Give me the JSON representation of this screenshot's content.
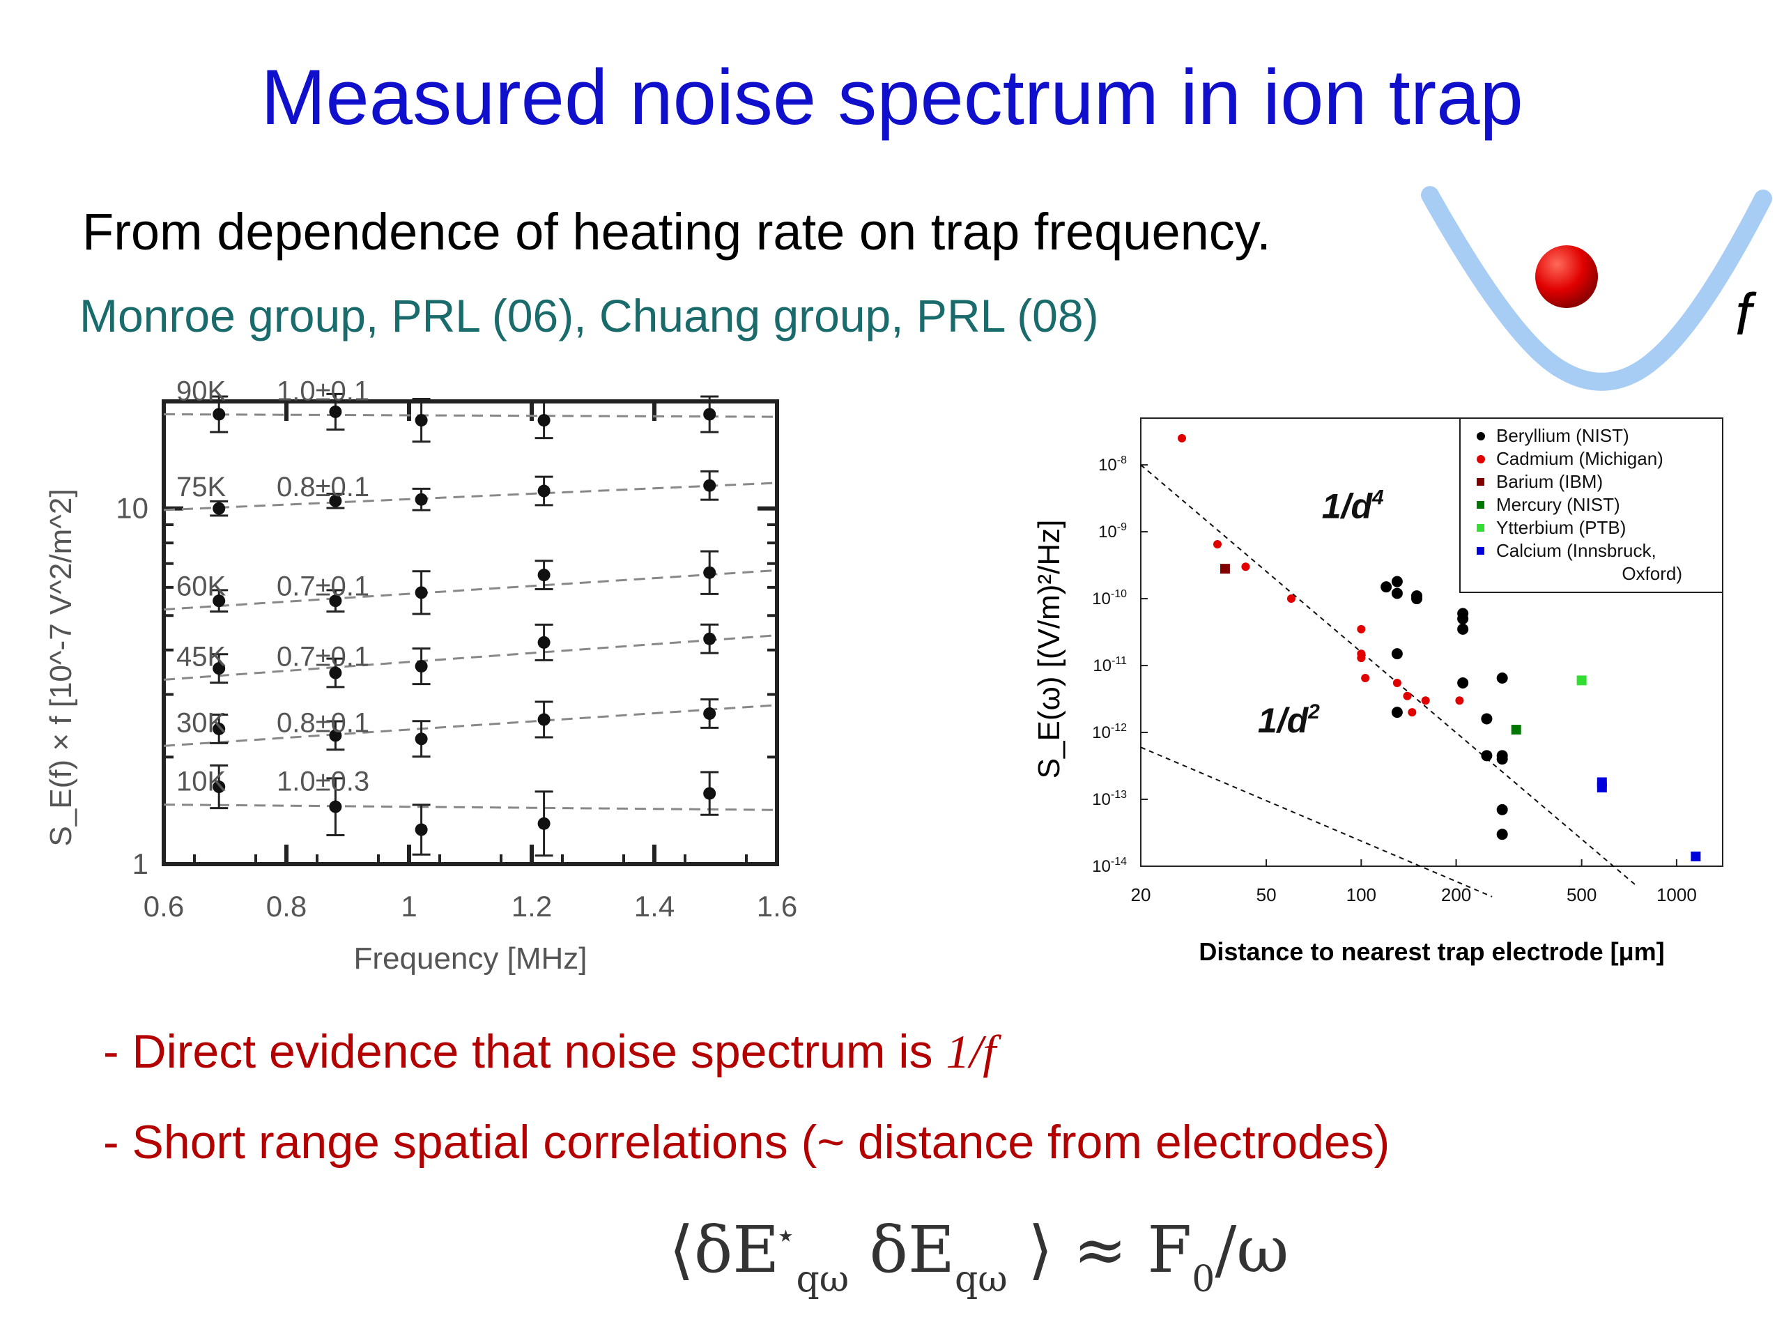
{
  "slide": {
    "title": "Measured noise spectrum in ion trap",
    "subtitle": "From dependence of heating rate on trap frequency.",
    "credits": "Monroe group, PRL  (06), Chuang group, PRL (08)",
    "well_label": "f",
    "bullet1_prefix": "- Direct evidence that noise spectrum is ",
    "bullet1_emph": "1/f",
    "bullet2": "- Short range spatial correlations (~ distance from electrodes)",
    "formula": {
      "open": "⟨δE",
      "sup1": "⋆",
      "sub1": "qω",
      "mid": "δE",
      "sub2": "qω",
      "close": "⟩ ≈ F",
      "sub3": "0",
      "tail": "/ω"
    }
  },
  "colors": {
    "title": "#1010cc",
    "credits": "#1a6b6b",
    "bullets": "#b30000",
    "well": "#a8cdf5",
    "ion": "#e00000"
  },
  "chart_data": [
    {
      "type": "scatter",
      "xlabel": "Frequency [MHz]",
      "ylabel": "S_E(f) × f [10^-7 V^2/m^2]",
      "xlim": [
        0.6,
        1.6
      ],
      "ylim": [
        1,
        20
      ],
      "yscale": "log",
      "xticks": [
        0.6,
        0.8,
        1,
        1.2,
        1.4,
        1.6
      ],
      "xtick_labels": [
        "0.6",
        "0.8",
        "1",
        "1.2",
        "1.4",
        "1.6"
      ],
      "yticks": [
        1,
        10
      ],
      "ytick_labels": [
        "1",
        "10"
      ],
      "grid": false,
      "series": [
        {
          "name": "90K",
          "slope": "1.0±0.1",
          "x": [
            0.69,
            0.88,
            1.02,
            1.22,
            1.49
          ],
          "y": [
            18.4,
            18.7,
            17.7,
            17.7,
            18.4
          ],
          "err": [
            0.05,
            0.05,
            0.06,
            0.05,
            0.05
          ],
          "fit": [
            18.4,
            18.1
          ]
        },
        {
          "name": "75K",
          "slope": "0.8±0.1",
          "x": [
            0.69,
            0.88,
            1.02,
            1.22,
            1.49
          ],
          "y": [
            10.0,
            10.5,
            10.6,
            11.2,
            11.6
          ],
          "err": [
            0.02,
            0.02,
            0.03,
            0.04,
            0.04
          ],
          "fit": [
            9.9,
            11.8
          ]
        },
        {
          "name": "60K",
          "slope": "0.7±0.1",
          "x": [
            0.69,
            0.88,
            1.02,
            1.22,
            1.49
          ],
          "y": [
            5.5,
            5.5,
            5.8,
            6.5,
            6.6
          ],
          "err": [
            0.03,
            0.03,
            0.06,
            0.04,
            0.06
          ],
          "fit": [
            5.2,
            6.7
          ]
        },
        {
          "name": "45K",
          "slope": "0.7±0.1",
          "x": [
            0.69,
            0.88,
            1.02,
            1.22,
            1.49
          ],
          "y": [
            3.55,
            3.45,
            3.6,
            4.2,
            4.3
          ],
          "err": [
            0.04,
            0.04,
            0.05,
            0.05,
            0.04
          ],
          "fit": [
            3.3,
            4.4
          ]
        },
        {
          "name": "30K",
          "slope": "0.8±0.1",
          "x": [
            0.69,
            0.88,
            1.02,
            1.22,
            1.49
          ],
          "y": [
            2.4,
            2.3,
            2.25,
            2.55,
            2.65
          ],
          "err": [
            0.04,
            0.04,
            0.05,
            0.05,
            0.04
          ],
          "fit": [
            2.15,
            2.8
          ]
        },
        {
          "name": "10K",
          "slope": "1.0±0.3",
          "x": [
            0.69,
            0.88,
            1.02,
            1.22,
            1.49
          ],
          "y": [
            1.65,
            1.45,
            1.25,
            1.3,
            1.58
          ],
          "err": [
            0.06,
            0.08,
            0.07,
            0.09,
            0.06
          ],
          "fit": [
            1.47,
            1.42
          ]
        }
      ]
    },
    {
      "type": "scatter",
      "xlabel": "Distance to nearest trap electrode [μm]",
      "ylabel": "S_E(ω)  [(V/m)²/Hz]",
      "xscale": "log",
      "yscale": "log",
      "xlim": [
        20,
        1400
      ],
      "ylim": [
        1e-14,
        5e-08
      ],
      "xticks": [
        20,
        50,
        100,
        200,
        500,
        1000
      ],
      "xtick_labels": [
        "20",
        "50",
        "100",
        "200",
        "500",
        "1000"
      ],
      "ytick_exponents": [
        -8,
        -9,
        -10,
        -11,
        -12,
        -13,
        -14
      ],
      "legend_position": "top-right",
      "annotations": [
        {
          "text": "1/d",
          "exp": "4"
        },
        {
          "text": "1/d",
          "exp": "2"
        }
      ],
      "guide_lines": [
        {
          "label": "1/d^4",
          "x": [
            20,
            750
          ],
          "y": [
            1e-08,
            5e-15
          ]
        },
        {
          "label": "1/d^2",
          "x": [
            20,
            260
          ],
          "y": [
            6e-13,
            3.5e-15
          ]
        }
      ],
      "series": [
        {
          "name": "Beryllium (NIST)",
          "color": "#000000",
          "marker": "circle",
          "x": [
            120,
            130,
            130,
            150,
            150,
            210,
            210,
            210,
            280,
            130,
            130,
            210,
            250,
            280,
            250,
            280,
            280,
            280
          ],
          "y": [
            1.5e-10,
            1.8e-10,
            1.2e-10,
            1e-10,
            1.1e-10,
            6e-11,
            5e-11,
            3.5e-11,
            6.5e-12,
            1.5e-11,
            2e-12,
            5.5e-12,
            1.6e-12,
            4.5e-13,
            4.5e-13,
            4e-13,
            7e-14,
            3e-14
          ]
        },
        {
          "name": "Cadmium (Michigan)",
          "color": "#e00000",
          "marker": "circle",
          "x": [
            27,
            35,
            43,
            60,
            100,
            100,
            100,
            103,
            130,
            140,
            145,
            160,
            205
          ],
          "y": [
            2.5e-08,
            6.5e-10,
            3e-10,
            1e-10,
            3.5e-11,
            1.5e-11,
            1.3e-11,
            6.5e-12,
            5.5e-12,
            3.5e-12,
            2e-12,
            3e-12,
            3e-12
          ]
        },
        {
          "name": "Barium (IBM)",
          "color": "#800000",
          "marker": "square",
          "x": [
            37
          ],
          "y": [
            2.8e-10
          ]
        },
        {
          "name": "Mercury (NIST)",
          "color": "#007700",
          "marker": "square",
          "x": [
            310
          ],
          "y": [
            1.1e-12
          ]
        },
        {
          "name": "Ytterbium (PTB)",
          "color": "#33dd33",
          "marker": "square",
          "x": [
            500
          ],
          "y": [
            6e-12
          ]
        },
        {
          "name": "Calcium (Innsbruck,\nOxford)",
          "color": "#0000dd",
          "marker": "square",
          "x": [
            580,
            580,
            1150
          ],
          "y": [
            1.8e-13,
            1.5e-13,
            1.4e-14
          ]
        }
      ]
    }
  ]
}
